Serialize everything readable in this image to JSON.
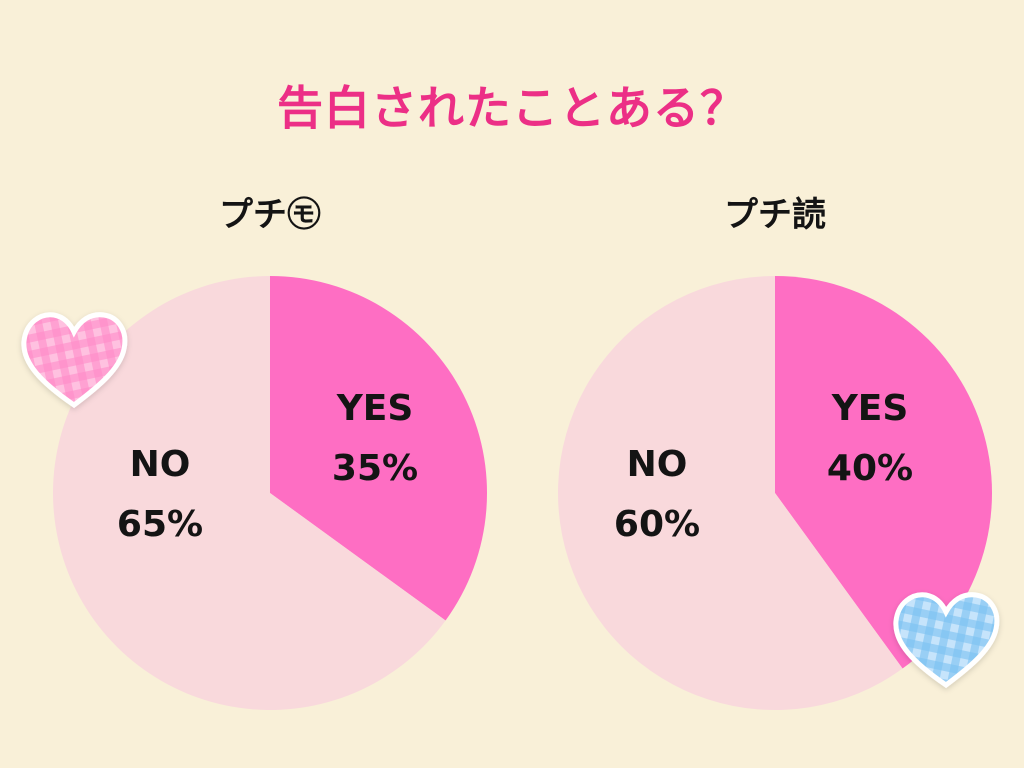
{
  "title": "告白されたことある？",
  "colors": {
    "background": "#f9f0d8",
    "title": "#ec2f86",
    "yes": "#fe6ec3",
    "no": "#f9d9dc",
    "text": "#141414"
  },
  "chart_data": [
    {
      "type": "pie",
      "title": "プチ㋲",
      "slices": [
        {
          "label": "YES",
          "value": 35,
          "value_label": "35%"
        },
        {
          "label": "NO",
          "value": 65,
          "value_label": "65%"
        }
      ]
    },
    {
      "type": "pie",
      "title": "プチ読",
      "slices": [
        {
          "label": "YES",
          "value": 40,
          "value_label": "40%"
        },
        {
          "label": "NO",
          "value": 60,
          "value_label": "60%"
        }
      ]
    }
  ],
  "decorations": [
    {
      "icon": "pink-gingham-heart-icon"
    },
    {
      "icon": "blue-gingham-heart-icon"
    }
  ]
}
